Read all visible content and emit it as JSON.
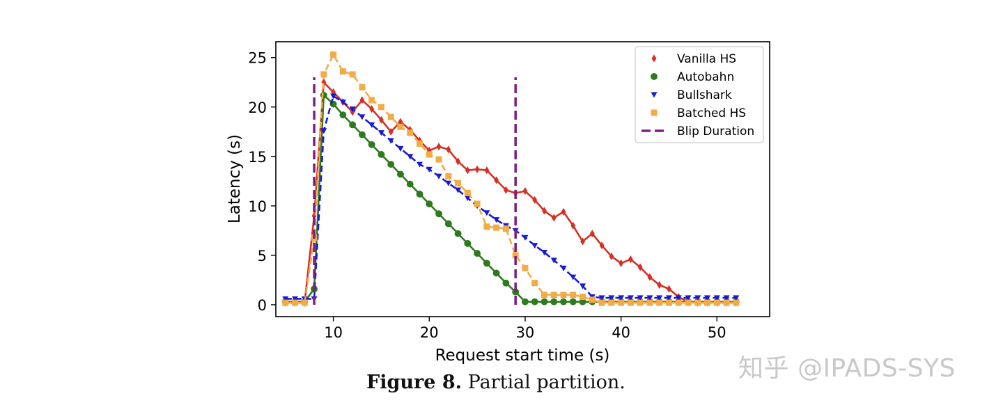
{
  "chart_data": {
    "type": "line",
    "xlabel": "Request start time (s)",
    "ylabel": "Latency (s)",
    "xlim": [
      4,
      55.5
    ],
    "ylim": [
      -1.2,
      26.6
    ],
    "xticks": [
      10,
      20,
      30,
      40,
      50
    ],
    "yticks": [
      0,
      5,
      10,
      15,
      20,
      25
    ],
    "legend_position": "top-right",
    "series": [
      {
        "name": "Vanilla HS",
        "color": "#d62f23",
        "marker": "diamond",
        "linestyle": "solid",
        "x": [
          5,
          6,
          7,
          8,
          9,
          10,
          11,
          12,
          13,
          14,
          15,
          16,
          17,
          18,
          19,
          20,
          21,
          22,
          23,
          24,
          25,
          26,
          27,
          28,
          29,
          30,
          31,
          32,
          33,
          34,
          35,
          36,
          37,
          38,
          39,
          40,
          41,
          42,
          43,
          44,
          45,
          46,
          47,
          48,
          49,
          50,
          51,
          52
        ],
        "y": [
          0.2,
          0.2,
          0.2,
          9.0,
          22.5,
          21.5,
          20.5,
          19.5,
          20.7,
          19.8,
          18.7,
          17.5,
          18.5,
          17.7,
          16.6,
          15.6,
          16.0,
          15.7,
          14.5,
          13.6,
          13.7,
          13.6,
          12.6,
          11.6,
          11.3,
          11.5,
          10.6,
          9.5,
          8.8,
          9.4,
          8.0,
          6.4,
          7.2,
          6.0,
          4.9,
          4.2,
          4.6,
          3.8,
          2.8,
          2.0,
          1.6,
          0.8,
          0.3,
          0.2,
          0.2,
          0.2,
          0.2,
          0.2
        ]
      },
      {
        "name": "Autobahn",
        "color": "#2e7a1e",
        "marker": "circle",
        "linestyle": "solid",
        "x": [
          5,
          6,
          7,
          8,
          9,
          10,
          11,
          12,
          13,
          14,
          15,
          16,
          17,
          18,
          19,
          20,
          21,
          22,
          23,
          24,
          25,
          26,
          27,
          28,
          29,
          30,
          31,
          32,
          33,
          34,
          35,
          36,
          37,
          38,
          39,
          40,
          41,
          42,
          43,
          44,
          45,
          46,
          47,
          48,
          49,
          50,
          51,
          52
        ],
        "y": [
          0.3,
          0.3,
          0.3,
          1.6,
          21.2,
          20.3,
          19.2,
          18.2,
          17.2,
          16.2,
          15.2,
          14.2,
          13.2,
          12.2,
          11.2,
          10.2,
          9.2,
          8.2,
          7.2,
          6.2,
          5.2,
          4.2,
          3.2,
          2.2,
          1.3,
          0.3,
          0.3,
          0.3,
          0.3,
          0.3,
          0.3,
          0.3,
          0.3,
          0.3,
          0.3,
          0.3,
          0.3,
          0.3,
          0.3,
          0.3,
          0.3,
          0.3,
          0.3,
          0.3,
          0.3,
          0.3,
          0.3,
          0.3
        ]
      },
      {
        "name": "Bullshark",
        "color": "#1a1ad6",
        "marker": "triangle-down",
        "linestyle": "dashed",
        "x": [
          5,
          6,
          7,
          8,
          9,
          10,
          11,
          12,
          13,
          14,
          15,
          16,
          17,
          18,
          19,
          20,
          21,
          22,
          23,
          24,
          25,
          26,
          27,
          28,
          29,
          30,
          31,
          32,
          33,
          34,
          35,
          36,
          37,
          38,
          39,
          40,
          41,
          42,
          43,
          44,
          45,
          46,
          47,
          48,
          49,
          50,
          51,
          52
        ],
        "y": [
          0.6,
          0.6,
          0.6,
          0.6,
          17.6,
          21.1,
          20.5,
          19.8,
          19.0,
          18.2,
          17.4,
          16.6,
          15.8,
          15.0,
          14.2,
          13.7,
          13.0,
          12.3,
          11.6,
          10.8,
          10.0,
          9.3,
          8.6,
          8.0,
          7.5,
          6.8,
          6.0,
          5.3,
          4.5,
          3.7,
          2.8,
          1.9,
          0.8,
          0.7,
          0.7,
          0.7,
          0.7,
          0.7,
          0.7,
          0.7,
          0.7,
          0.7,
          0.7,
          0.7,
          0.7,
          0.7,
          0.7,
          0.7
        ]
      },
      {
        "name": "Batched HS",
        "color": "#f2ab45",
        "marker": "square",
        "linestyle": "dashed",
        "x": [
          5,
          6,
          7,
          8,
          9,
          10,
          11,
          12,
          13,
          14,
          15,
          16,
          17,
          18,
          19,
          20,
          21,
          22,
          23,
          24,
          25,
          26,
          27,
          28,
          29,
          30,
          31,
          32,
          33,
          34,
          35,
          36,
          37,
          38,
          39,
          40,
          41,
          42,
          43,
          44,
          45,
          46,
          47,
          48,
          49,
          50,
          51,
          52
        ],
        "y": [
          0.2,
          0.2,
          0.2,
          6.8,
          23.3,
          25.3,
          23.6,
          23.3,
          22.0,
          20.7,
          20.0,
          19.0,
          18.0,
          17.4,
          16.3,
          15.2,
          14.7,
          13.0,
          12.3,
          11.3,
          10.2,
          7.9,
          7.8,
          7.7,
          5.0,
          3.7,
          2.2,
          1.0,
          1.0,
          1.0,
          1.0,
          0.8,
          0.5,
          0.2,
          0.2,
          0.2,
          0.2,
          0.2,
          0.2,
          0.2,
          0.2,
          0.2,
          0.2,
          0.2,
          0.2,
          0.2,
          0.2,
          0.2
        ]
      }
    ],
    "vlines": {
      "name": "Blip Duration",
      "color": "#7b1f83",
      "linestyle": "dashed",
      "x": [
        8,
        29
      ],
      "y_range": [
        0,
        23
      ]
    }
  },
  "caption": {
    "label": "Figure 8.",
    "text": " Partial partition."
  },
  "watermark": "知乎 @IPADS-SYS"
}
